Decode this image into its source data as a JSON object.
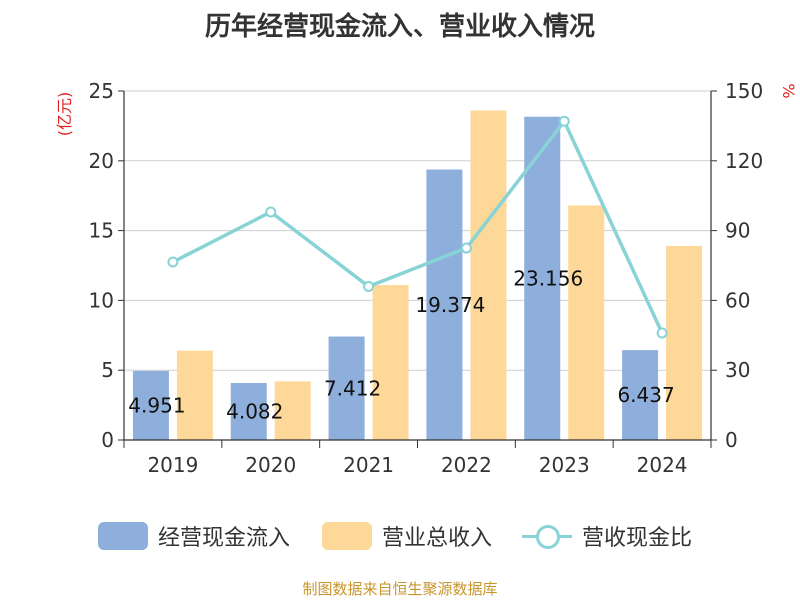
{
  "chart_data": {
    "type": "bar",
    "title": "历年经营现金流入、营业收入情况",
    "categories": [
      "2019",
      "2020",
      "2021",
      "2022",
      "2023",
      "2024"
    ],
    "series": [
      {
        "name": "经营现金流入",
        "type": "bar",
        "axis": "left",
        "color": "#8eaedb",
        "values": [
          4.951,
          4.082,
          7.412,
          19.374,
          23.156,
          6.437
        ]
      },
      {
        "name": "营业总收入",
        "type": "bar",
        "axis": "left",
        "color": "#fed899",
        "values": [
          6.4,
          4.2,
          11.1,
          23.6,
          16.8,
          13.9
        ]
      },
      {
        "name": "营收现金比",
        "type": "line",
        "axis": "right",
        "color": "#88d3d6",
        "values": [
          76.5,
          98,
          66,
          82.5,
          137,
          46
        ]
      }
    ],
    "data_labels": [
      "4.951",
      "4.082",
      "7.412",
      "19.374",
      "23.156",
      "6.437"
    ],
    "left_axis": {
      "label": "(亿元)",
      "min": 0,
      "max": 25,
      "ticks": [
        0,
        5,
        10,
        15,
        20,
        25
      ]
    },
    "right_axis": {
      "label": "%",
      "min": 0,
      "max": 150,
      "ticks": [
        0,
        30,
        60,
        90,
        120,
        150
      ]
    },
    "grid": true,
    "legend_position": "bottom",
    "source": "制图数据来自恒生聚源数据库"
  }
}
